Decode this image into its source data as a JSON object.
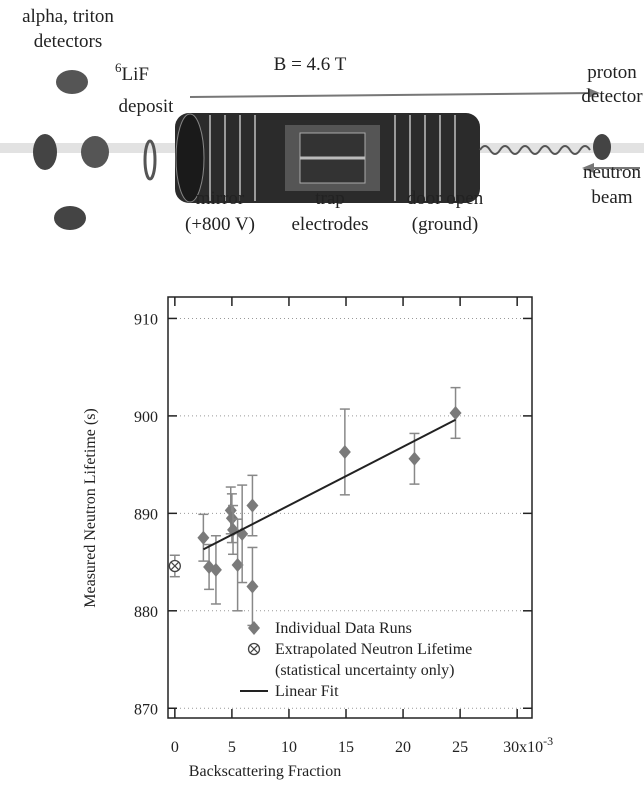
{
  "diagram": {
    "detectors": [
      "alpha, triton",
      "detectors"
    ],
    "lif": {
      "sup": "6",
      "lines": [
        "LiF",
        "deposit"
      ]
    },
    "field": "B = 4.6 T",
    "proton_detector": [
      "proton",
      "detector"
    ],
    "neutron_beam": [
      "neutron",
      "beam"
    ],
    "mirror": [
      "mirror",
      "(+800 V)"
    ],
    "trap": [
      "trap",
      "electrodes"
    ],
    "door": [
      "door open",
      "(ground)"
    ]
  },
  "chart_data": {
    "type": "scatter",
    "x_label": "Backscattering Fraction",
    "y_label": "Measured Neutron Lifetime (s)",
    "xlim": [
      -0.6,
      31.3
    ],
    "ylim": [
      869,
      912.2
    ],
    "xticks": [
      0,
      5,
      10,
      15,
      20,
      25,
      {
        "value": 30,
        "label": "30x10"
      }
    ],
    "xtick_exponent": "-3",
    "yticks": [
      870,
      880,
      890,
      900,
      910
    ],
    "grid": true,
    "series": [
      {
        "name": "Individual Data Runs",
        "color": "#7a7a7a",
        "marker": "diamond",
        "x": [
          2.5,
          3.0,
          3.6,
          4.9,
          5.0,
          5.1,
          5.5,
          5.9,
          6.8,
          6.8,
          14.9,
          21.0,
          24.6
        ],
        "values": [
          887.5,
          884.5,
          884.2,
          890.3,
          889.5,
          888.3,
          884.7,
          887.9,
          890.8,
          882.5,
          896.3,
          895.6,
          900.3
        ],
        "errors": [
          2.4,
          2.3,
          3.5,
          2.4,
          2.5,
          2.5,
          4.7,
          5.0,
          3.1,
          4.0,
          4.4,
          2.6,
          2.6
        ]
      },
      {
        "name": "Extrapolated Neutron Lifetime",
        "note": "(statistical uncertainty only)",
        "color": "#444444",
        "marker": "circle-x",
        "x": [
          0
        ],
        "values": [
          884.6
        ],
        "errors": [
          1.1
        ]
      },
      {
        "name": "Linear Fit",
        "color": "#222222",
        "marker": "line",
        "x": [
          2.5,
          24.6
        ],
        "values": [
          886.3,
          899.6
        ]
      }
    ]
  }
}
